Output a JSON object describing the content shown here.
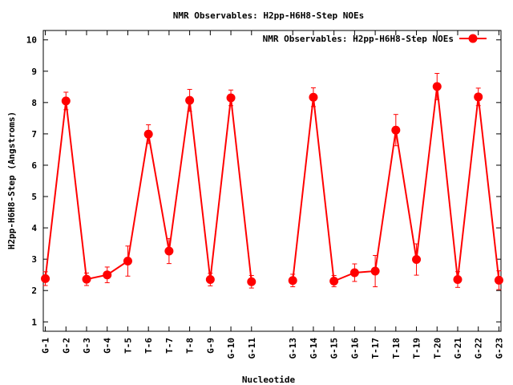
{
  "chart_data": {
    "type": "line",
    "title": "NMR Observables: H2pp-H6H8-Step NOEs",
    "xlabel": "Nucleotide",
    "ylabel": "H2pp-H6H8-Step (Angstroms)",
    "ylim": [
      0.7,
      10.3
    ],
    "yticks": [
      1,
      2,
      3,
      4,
      5,
      6,
      7,
      8,
      9,
      10
    ],
    "xlim": [
      0.9,
      23.1
    ],
    "categories": [
      "G-1",
      "G-2",
      "G-3",
      "G-4",
      "T-5",
      "T-6",
      "T-7",
      "T-8",
      "G-9",
      "G-10",
      "G-11",
      "G-13",
      "G-14",
      "G-15",
      "G-16",
      "T-17",
      "T-18",
      "T-19",
      "T-20",
      "G-21",
      "G-22",
      "G-23"
    ],
    "x": [
      1,
      2,
      3,
      4,
      5,
      6,
      7,
      8,
      9,
      10,
      11,
      13,
      14,
      15,
      16,
      17,
      18,
      19,
      20,
      21,
      22,
      23
    ],
    "series": [
      {
        "name": "NMR Observables: H2pp-H6H8-Step NOEs",
        "color": "#ff0000",
        "segments": [
          [
            0,
            10
          ],
          [
            11,
            21
          ]
        ],
        "values": [
          2.38,
          8.05,
          2.36,
          2.5,
          2.94,
          6.99,
          3.26,
          8.07,
          2.35,
          8.15,
          2.28,
          2.32,
          8.17,
          2.3,
          2.57,
          2.62,
          7.12,
          2.99,
          8.51,
          2.35,
          8.18,
          2.33
        ],
        "errors": [
          0.22,
          0.28,
          0.2,
          0.25,
          0.48,
          0.3,
          0.4,
          0.35,
          0.2,
          0.25,
          0.2,
          0.2,
          0.3,
          0.18,
          0.28,
          0.5,
          0.5,
          0.5,
          0.42,
          0.25,
          0.28,
          0.3
        ]
      }
    ],
    "legend": "top-right",
    "grid": false
  }
}
